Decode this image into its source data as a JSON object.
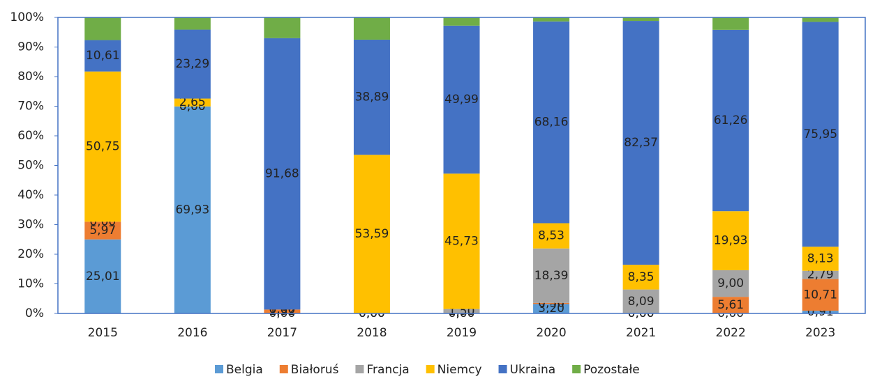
{
  "chart_data": {
    "type": "bar",
    "stacked": true,
    "categories": [
      "2015",
      "2016",
      "2017",
      "2018",
      "2019",
      "2020",
      "2021",
      "2022",
      "2023"
    ],
    "series": [
      {
        "name": "Belgia",
        "color": "#5b9bd5",
        "values": [
          25.01,
          69.93,
          0.0,
          0.0,
          0.0,
          3.2,
          0.0,
          0.0,
          0.91
        ],
        "value_labels": [
          "25,01",
          "69,93",
          "0,00",
          "0,00",
          "0,00",
          "3,20",
          "0,00",
          "0,00",
          "0,91"
        ]
      },
      {
        "name": "Białoruś",
        "color": "#ed7d31",
        "values": [
          5.97,
          0.0,
          1.32,
          0.0,
          0.0,
          0.36,
          0.0,
          5.61,
          10.71
        ],
        "value_labels": [
          "5,97",
          "0,00",
          "1,32",
          "0,00",
          "0,00",
          "0,36",
          "0,00",
          "5,61",
          "10,71"
        ]
      },
      {
        "name": "Francja",
        "color": "#a5a5a5",
        "values": [
          0.0,
          0.0,
          0.0,
          0.0,
          1.5,
          18.39,
          8.09,
          9.0,
          2.79
        ],
        "value_labels": [
          "0,00",
          "0,00",
          "0,00",
          "0,00",
          "1,50",
          "18,39",
          "8,09",
          "9,00",
          "2,79"
        ]
      },
      {
        "name": "Niemcy",
        "color": "#ffc000",
        "values": [
          50.75,
          2.65,
          0.0,
          53.59,
          45.73,
          8.53,
          8.35,
          19.93,
          8.13
        ],
        "value_labels": [
          "50,75",
          "2,65",
          "0,00",
          "53,59",
          "45,73",
          "8,53",
          "8,35",
          "19,93",
          "8,13"
        ]
      },
      {
        "name": "Ukraina",
        "color": "#4472c4",
        "values": [
          10.61,
          23.29,
          91.68,
          38.89,
          49.99,
          68.16,
          82.37,
          61.26,
          75.95
        ],
        "value_labels": [
          "10,61",
          "23,29",
          "91,68",
          "38,89",
          "49,99",
          "68,16",
          "82,37",
          "61,26",
          "75,95"
        ]
      },
      {
        "name": "Pozostałe",
        "color": "#70ad47",
        "values": [
          7.66,
          4.13,
          7.0,
          7.52,
          2.78,
          1.36,
          1.19,
          4.2,
          1.51
        ]
      }
    ],
    "ylim": [
      0,
      100
    ],
    "yticks": [
      {
        "value": 0,
        "label": "0%"
      },
      {
        "value": 10,
        "label": "10%"
      },
      {
        "value": 20,
        "label": "20%"
      },
      {
        "value": 30,
        "label": "30%"
      },
      {
        "value": 40,
        "label": "40%"
      },
      {
        "value": 50,
        "label": "50%"
      },
      {
        "value": 60,
        "label": "60%"
      },
      {
        "value": 70,
        "label": "70%"
      },
      {
        "value": 80,
        "label": "80%"
      },
      {
        "value": 90,
        "label": "90%"
      },
      {
        "value": 100,
        "label": "100%"
      }
    ],
    "legend": "bottom"
  }
}
